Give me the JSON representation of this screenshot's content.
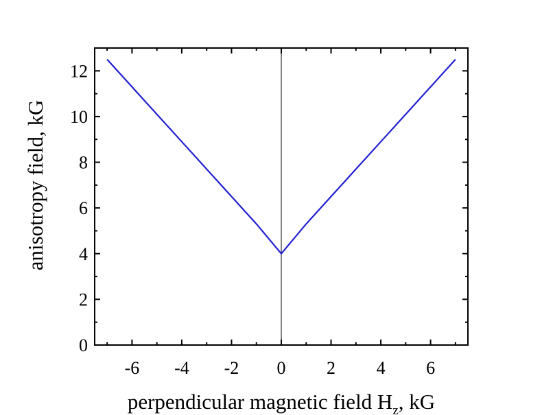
{
  "chart_data": {
    "type": "line",
    "title": "",
    "xlabel_main": "perpendicular magnetic field H",
    "xlabel_sub": "z",
    "xlabel_unit": ", kG",
    "ylabel": "anisotropy field, kG",
    "xlim": [
      -7.5,
      7.5
    ],
    "ylim": [
      0,
      13
    ],
    "xticks": [
      -6,
      -4,
      -2,
      0,
      2,
      4,
      6
    ],
    "xtick_labels": [
      "-6",
      "-4",
      "-2",
      "0",
      "2",
      "4",
      "6"
    ],
    "yticks": [
      0,
      2,
      4,
      6,
      8,
      10,
      12
    ],
    "ytick_labels": [
      "0",
      "2",
      "4",
      "6",
      "8",
      "10",
      "12"
    ],
    "grid": false,
    "legend": "none",
    "zero_line_x": 0,
    "series": [
      {
        "color": "#1f1fd0",
        "x": [
          -7,
          -6,
          -5,
          -4,
          -3,
          -2,
          -1,
          0,
          1,
          2,
          3,
          4,
          5,
          6,
          7
        ],
        "y": [
          12.5,
          11.3,
          10.1,
          8.9,
          7.7,
          6.5,
          5.3,
          4.0,
          5.3,
          6.5,
          7.7,
          8.9,
          10.1,
          11.3,
          12.5
        ]
      }
    ]
  }
}
